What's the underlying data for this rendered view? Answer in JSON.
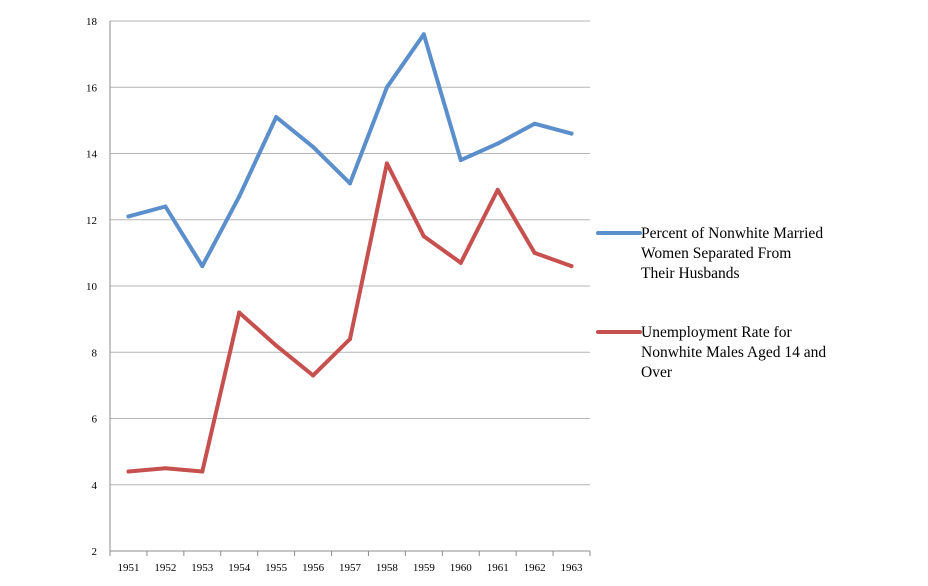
{
  "chart_data": {
    "type": "line",
    "title": "",
    "xlabel": "",
    "ylabel": "",
    "x": [
      "1951",
      "1952",
      "1953",
      "1954",
      "1955",
      "1956",
      "1957",
      "1958",
      "1959",
      "1960",
      "1961",
      "1962",
      "1963"
    ],
    "ylim": [
      2,
      18
    ],
    "yticks": [
      2,
      4,
      6,
      8,
      10,
      12,
      14,
      16,
      18
    ],
    "grid": "horizontal",
    "legend_position": "right",
    "series": [
      {
        "name_lines": [
          "Percent of Nonwhite Married",
          "Women Separated From",
          "Their Husbands"
        ],
        "color": "#5b8fcc",
        "values": [
          12.1,
          12.4,
          10.6,
          12.7,
          15.1,
          14.2,
          13.1,
          16.0,
          17.6,
          13.8,
          14.3,
          14.9,
          14.6
        ]
      },
      {
        "name_lines": [
          "Unemployment Rate for",
          "Nonwhite Males Aged 14 and",
          "Over"
        ],
        "color": "#c6504e",
        "values": [
          4.4,
          4.5,
          4.4,
          9.2,
          8.2,
          7.3,
          8.4,
          13.7,
          11.5,
          10.7,
          12.9,
          11.0,
          10.6
        ]
      }
    ]
  }
}
